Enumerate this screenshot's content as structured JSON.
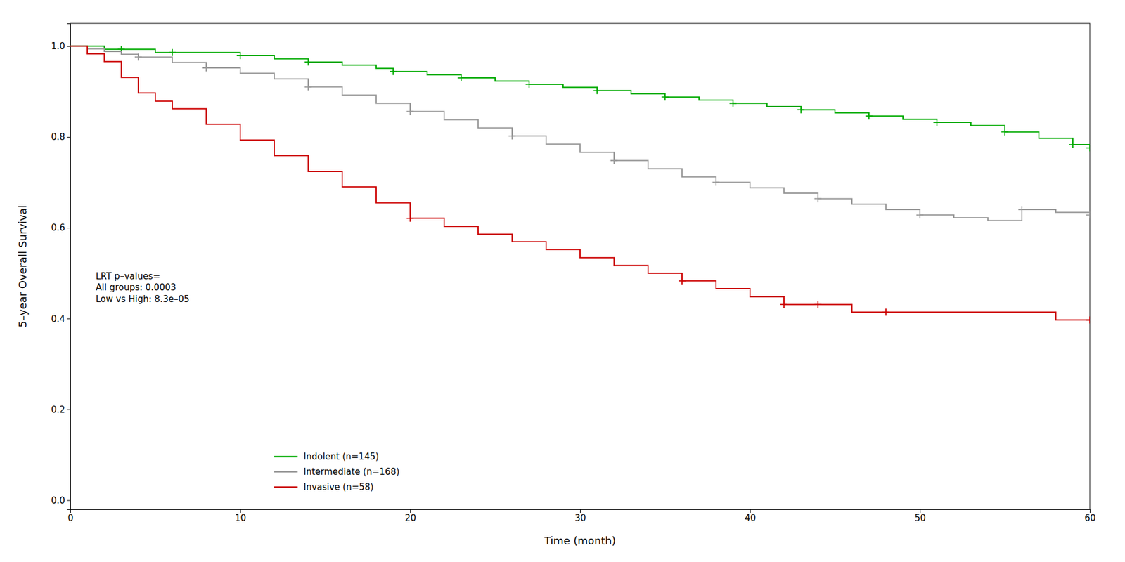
{
  "chart_data": {
    "type": "step",
    "x_label": "Time (month)",
    "y_label": "5–year Overall Survival",
    "annotation": "LRT p–values=\nAll groups: 0.0003\nLow vs High: 8.3e–05",
    "xlim": [
      0,
      60
    ],
    "ylim": [
      -0.02,
      1.05
    ],
    "xticks": [
      0,
      10,
      20,
      30,
      40,
      50,
      60
    ],
    "yticks": [
      {
        "value": 0.0,
        "label": "0.0"
      },
      0.2,
      0.4,
      0.6,
      0.8,
      {
        "value": 1.0,
        "label": "1.0"
      }
    ],
    "grid": false,
    "legend": "lower left",
    "marker": "plus",
    "series": [
      {
        "name": "Indolent (n=145)",
        "color": "#00aa00",
        "x": [
          0,
          1,
          2,
          3,
          5,
          6,
          8,
          10,
          12,
          14,
          16,
          18,
          19,
          21,
          23,
          25,
          27,
          29,
          31,
          33,
          35,
          37,
          39,
          41,
          43,
          45,
          47,
          49,
          51,
          53,
          55,
          57,
          59,
          60
        ],
        "values": [
          1.0,
          1.0,
          0.993,
          0.993,
          0.986,
          0.986,
          0.986,
          0.979,
          0.972,
          0.965,
          0.958,
          0.951,
          0.944,
          0.937,
          0.93,
          0.923,
          0.916,
          0.909,
          0.902,
          0.895,
          0.888,
          0.881,
          0.874,
          0.867,
          0.86,
          0.853,
          0.846,
          0.839,
          0.832,
          0.825,
          0.811,
          0.797,
          0.783,
          0.776
        ],
        "censor_x": [
          3,
          6,
          10,
          14,
          19,
          23,
          27,
          31,
          35,
          39,
          43,
          47,
          51,
          55,
          59,
          60
        ],
        "censor_values": [
          0.993,
          0.986,
          0.979,
          0.965,
          0.944,
          0.93,
          0.916,
          0.902,
          0.888,
          0.874,
          0.86,
          0.846,
          0.832,
          0.811,
          0.783,
          0.776
        ]
      },
      {
        "name": "Intermediate (n=168)",
        "color": "#999999",
        "x": [
          0,
          1,
          2,
          3,
          4,
          6,
          8,
          10,
          12,
          14,
          16,
          18,
          20,
          22,
          24,
          26,
          28,
          30,
          32,
          34,
          36,
          38,
          40,
          42,
          44,
          46,
          48,
          50,
          52,
          54,
          56,
          58,
          60
        ],
        "values": [
          1.0,
          0.994,
          0.988,
          0.982,
          0.976,
          0.964,
          0.952,
          0.94,
          0.928,
          0.91,
          0.892,
          0.874,
          0.856,
          0.838,
          0.82,
          0.802,
          0.784,
          0.766,
          0.748,
          0.73,
          0.712,
          0.7,
          0.688,
          0.676,
          0.664,
          0.652,
          0.64,
          0.628,
          0.622,
          0.616,
          0.64,
          0.634,
          0.628
        ],
        "censor_x": [
          4,
          8,
          14,
          20,
          26,
          32,
          38,
          44,
          50,
          56,
          60
        ],
        "censor_values": [
          0.976,
          0.952,
          0.91,
          0.856,
          0.802,
          0.748,
          0.7,
          0.664,
          0.628,
          0.64,
          0.628
        ]
      },
      {
        "name": "Invasive (n=58)",
        "color": "#cc0000",
        "x": [
          0,
          1,
          2,
          3,
          4,
          5,
          6,
          8,
          10,
          12,
          14,
          16,
          18,
          20,
          22,
          24,
          26,
          28,
          30,
          32,
          34,
          36,
          38,
          40,
          42,
          44,
          46,
          48,
          50,
          52,
          54,
          56,
          58,
          60
        ],
        "values": [
          1.0,
          0.983,
          0.966,
          0.931,
          0.897,
          0.879,
          0.862,
          0.828,
          0.793,
          0.759,
          0.724,
          0.69,
          0.655,
          0.621,
          0.603,
          0.586,
          0.569,
          0.552,
          0.534,
          0.517,
          0.5,
          0.483,
          0.466,
          0.448,
          0.431,
          0.431,
          0.414,
          0.414,
          0.414,
          0.414,
          0.414,
          0.414,
          0.397,
          0.397
        ],
        "censor_x": [
          20,
          36,
          42,
          44,
          48,
          60
        ],
        "censor_values": [
          0.621,
          0.483,
          0.431,
          0.431,
          0.414,
          0.397
        ]
      }
    ]
  }
}
